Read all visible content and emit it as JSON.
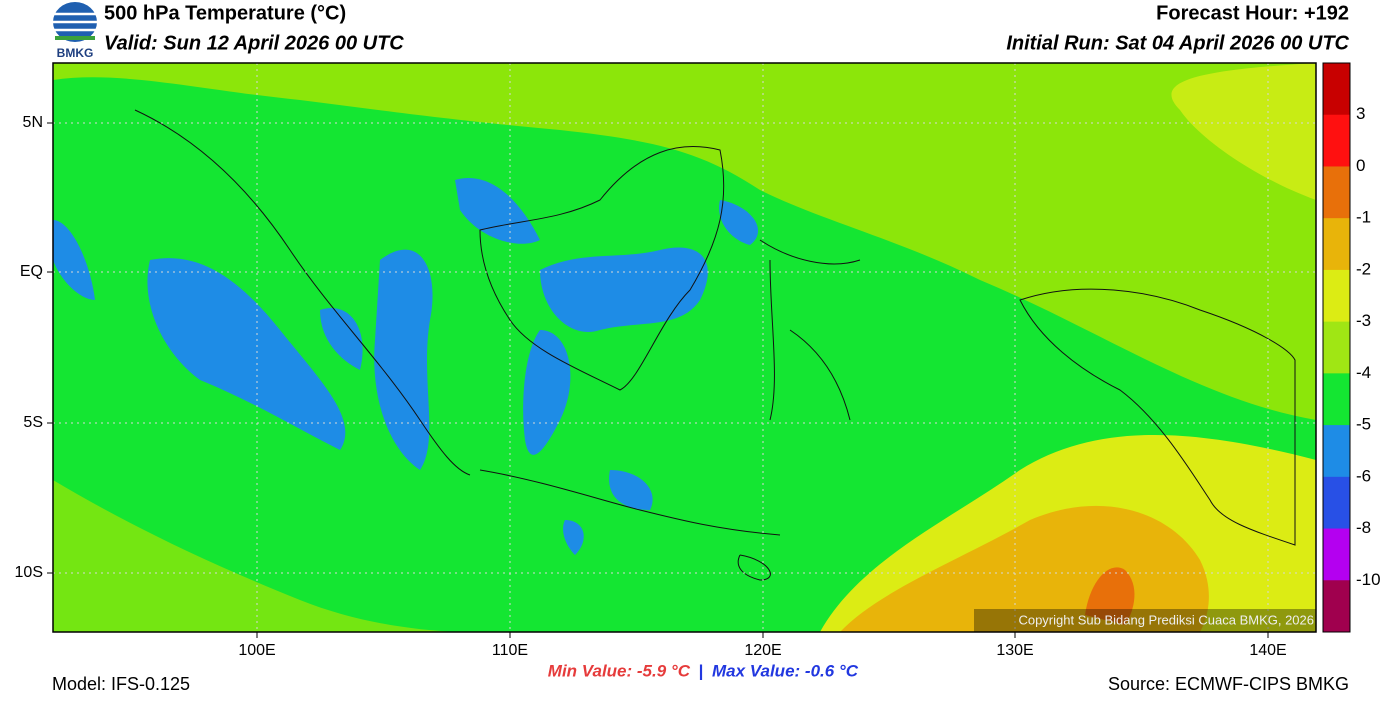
{
  "header": {
    "logo": "BMKG",
    "title": "500 hPa Temperature (°C)",
    "valid": "Valid: Sun 12 April 2026 00 UTC",
    "forecast_hour": "Forecast Hour: +192",
    "initial_run": "Initial Run: Sat 04 April 2026 00 UTC"
  },
  "map": {
    "lat_labels": [
      "5N",
      "EQ",
      "5S",
      "10S"
    ],
    "lon_labels": [
      "100E",
      "110E",
      "120E",
      "130E",
      "140E"
    ],
    "copyright": "Copyright Sub Bidang Prediksi Cuaca BMKG, 2026"
  },
  "colorbar": {
    "labels": [
      "3",
      "0",
      "-1",
      "-2",
      "-3",
      "-4",
      "-5",
      "-6",
      "-8",
      "-10"
    ],
    "colors": [
      "#c80000",
      "#ff1010",
      "#e8700a",
      "#e8b40a",
      "#dcec14",
      "#a0e614",
      "#14e632",
      "#1e8ce6",
      "#2850e6",
      "#b400f0",
      "#a0004e"
    ]
  },
  "footer": {
    "model": "Model: IFS-0.125",
    "min_value": "Min Value: -5.9 °C",
    "separator": "|",
    "max_value": "Max Value: -0.6 °C",
    "source": "Source: ECMWF-CIPS BMKG"
  }
}
